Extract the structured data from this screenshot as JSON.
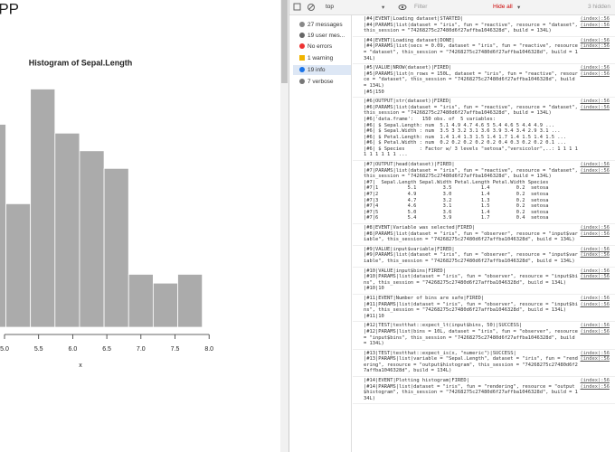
{
  "app": {
    "title": "APP"
  },
  "chart_data": {
    "type": "histogram",
    "title": "Histogram of Sepal.Length",
    "x_label": "x",
    "bins": [
      4.66,
      5.02,
      5.38,
      5.74,
      6.1,
      6.46,
      6.82,
      7.18,
      7.54,
      7.9
    ],
    "values": [
      23,
      14,
      27,
      22,
      20,
      18,
      6,
      5,
      6
    ],
    "color": "#ababab",
    "xlim": [
      4.9,
      8.0
    ],
    "ylim": [
      0,
      30
    ],
    "xticks": [
      {
        "value": 5,
        "label": "5.0"
      },
      5.5,
      {
        "value": 6,
        "label": "6.0"
      },
      6.5,
      {
        "value": 7,
        "label": "7.0"
      },
      7.5,
      {
        "value": 8,
        "label": "8.0"
      }
    ]
  },
  "toolbar": {
    "context": "top",
    "filter": "Filter",
    "levels": "Hide all",
    "hidden": "3 hidden"
  },
  "sidebar": [
    "27 messages",
    "19 user mes...",
    "No errors",
    "1 warning",
    "19 info",
    "7 verbose"
  ],
  "console": [
    [
      {
        "text": "|#4|EVENT|Loading dataset|STARTED|",
        "link": "(index):56"
      },
      {
        "text": "|#4|PARAMS|list(dataset = \"iris\", fun = \"reactive\", resource = \"dataset\", this_session = \"74268275c27480d6f27affba1046328d\", build = 134L)",
        "link": "(index):56"
      }
    ],
    [
      {
        "text": "|#4|EVENT|Loading dataset|DONE|",
        "link": "(index):56"
      },
      {
        "text": "|#4|PARAMS|list(secs = 0.09, dataset = \"iris\", fun = \"reactive\", resource = \"dataset\", this_session = \"74268275c27480d6f27affba1046328d\", build = 134L)",
        "link": "(index):56"
      }
    ],
    [
      {
        "text": "|#5|VALUE|NROW(dataset)|FIRED|",
        "link": "(index):56"
      },
      {
        "text": "|#5|PARAMS|list(n_rows = 150L, dataset = \"iris\", fun = \"reactive\", resource = \"dataset\", this_session = \"74268275c27480d6f27affba1046328d\", build = 134L)",
        "link": "(index):56"
      },
      {
        "text": "|#5|150"
      }
    ],
    [
      {
        "text": "|#6|OUTPUT|str(dataset)|FIRED|",
        "link": "(index):56"
      },
      {
        "text": "|#6|PARAMS|list(dataset = \"iris\", fun = \"reactive\", resource = \"dataset\", this_session = \"74268275c27480d6f27affba1046328d\", build = 134L)",
        "link": "(index):56"
      },
      {
        "text": "|#6|'data.frame':   150 obs. of  5 variables:"
      },
      {
        "text": "|#6| $ Sepal.Length: num  5.1 4.9 4.7 4.6 5 5.4 4.6 5 4.4 4.9 ..."
      },
      {
        "text": "|#6| $ Sepal.Width : num  3.5 3 3.2 3.1 3.6 3.9 3.4 3.4 2.9 3.1 ..."
      },
      {
        "text": "|#6| $ Petal.Length: num  1.4 1.4 1.3 1.5 1.4 1.7 1.4 1.5 1.4 1.5 ..."
      },
      {
        "text": "|#6| $ Petal.Width : num  0.2 0.2 0.2 0.2 0.2 0.4 0.3 0.2 0.2 0.1 ..."
      },
      {
        "text": "|#6| $ Species     : Factor w/ 3 levels \"setosa\",\"versicolor\",..: 1 1 1 1 1 1 1 1 1 1 ..."
      }
    ],
    [
      {
        "text": "|#7|OUTPUT|head(dataset)|FIRED|",
        "link": "(index):56"
      },
      {
        "text": "|#7|PARAMS|list(dataset = \"iris\", fun = \"reactive\", resource = \"dataset\", this_session = \"74268275c27480d6f27affba1046328d\", build = 134L)",
        "link": "(index):56"
      },
      {
        "text": "|#7|  Sepal.Length Sepal.Width Petal.Length Petal.Width Species"
      },
      {
        "text": "|#7|1          5.1         3.5          1.4         0.2  setosa"
      },
      {
        "text": "|#7|2          4.9         3.0          1.4         0.2  setosa"
      },
      {
        "text": "|#7|3          4.7         3.2          1.3         0.2  setosa"
      },
      {
        "text": "|#7|4          4.6         3.1          1.5         0.2  setosa"
      },
      {
        "text": "|#7|5          5.0         3.6          1.4         0.2  setosa"
      },
      {
        "text": "|#7|6          5.4         3.9          1.7         0.4  setosa"
      }
    ],
    [
      {
        "text": "|#8|EVENT|Variable was selected|FIRED|",
        "link": "(index):56"
      },
      {
        "text": "|#8|PARAMS|list(dataset = \"iris\", fun = \"observer\", resource = \"input$variable\", this_session = \"74268275c27480d6f27affba1046328d\", build = 134L)",
        "link": "(index):56"
      }
    ],
    [
      {
        "text": "|#9|VALUE|input$variable|FIRED|",
        "link": "(index):56"
      },
      {
        "text": "|#9|PARAMS|list(dataset = \"iris\", fun = \"observer\", resource = \"input$variable\", this_session = \"74268275c27480d6f27affba1046328d\", build = 134L)",
        "link": "(index):56"
      }
    ],
    [
      {
        "text": "|#10|VALUE|input$bins|FIRED|",
        "link": "(index):56"
      },
      {
        "text": "|#10|PARAMS|list(dataset = \"iris\", fun = \"observer\", resource = \"input$bins\", this_session = \"74268275c27480d6f27affba1046328d\", build = 134L)",
        "link": "(index):56"
      },
      {
        "text": "|#10|10"
      }
    ],
    [
      {
        "text": "|#11|EVENT|Number of bins are safe|FIRED|",
        "link": "(index):56"
      },
      {
        "text": "|#11|PARAMS|list(dataset = \"iris\", fun = \"observer\", resource = \"input$bins\", this_session = \"74268275c27480d6f27affba1046328d\", build = 134L)",
        "link": "(index):56"
      },
      {
        "text": "|#11|10"
      }
    ],
    [
      {
        "text": "|#12|TEST|testthat::expect_lt(input$bins, 50)|SUCCESS|",
        "link": "(index):56"
      },
      {
        "text": "|#12|PARAMS|list(bins = 10L, dataset = \"iris\", fun = \"observer\", resource = \"input$bins\", this_session = \"74268275c27480d6f27affba1046328d\", build = 134L)",
        "link": "(index):56"
      }
    ],
    [
      {
        "text": "|#13|TEST|testthat::expect_is(x, \"numeric\")|SUCCESS|",
        "link": "(index):56"
      },
      {
        "text": "|#13|PARAMS|list(variable = \"Sepal.Length\", dataset = \"iris\", fun = \"rendering\", resource = \"output$histogram\", this_session = \"74268275c27480d6f27affba1046328d\", build = 134L)",
        "link": "(index):56"
      }
    ],
    [
      {
        "text": "|#14|EVENT|Plotting histogram|FIRED|",
        "link": "(index):56"
      },
      {
        "text": "|#14|PARAMS|list(dataset = \"iris\", fun = \"rendering\", resource = \"output$histogram\", this_session = \"74268275c27480d6f27affba1046328d\", build = 134L)",
        "link": "(index):56"
      }
    ]
  ]
}
